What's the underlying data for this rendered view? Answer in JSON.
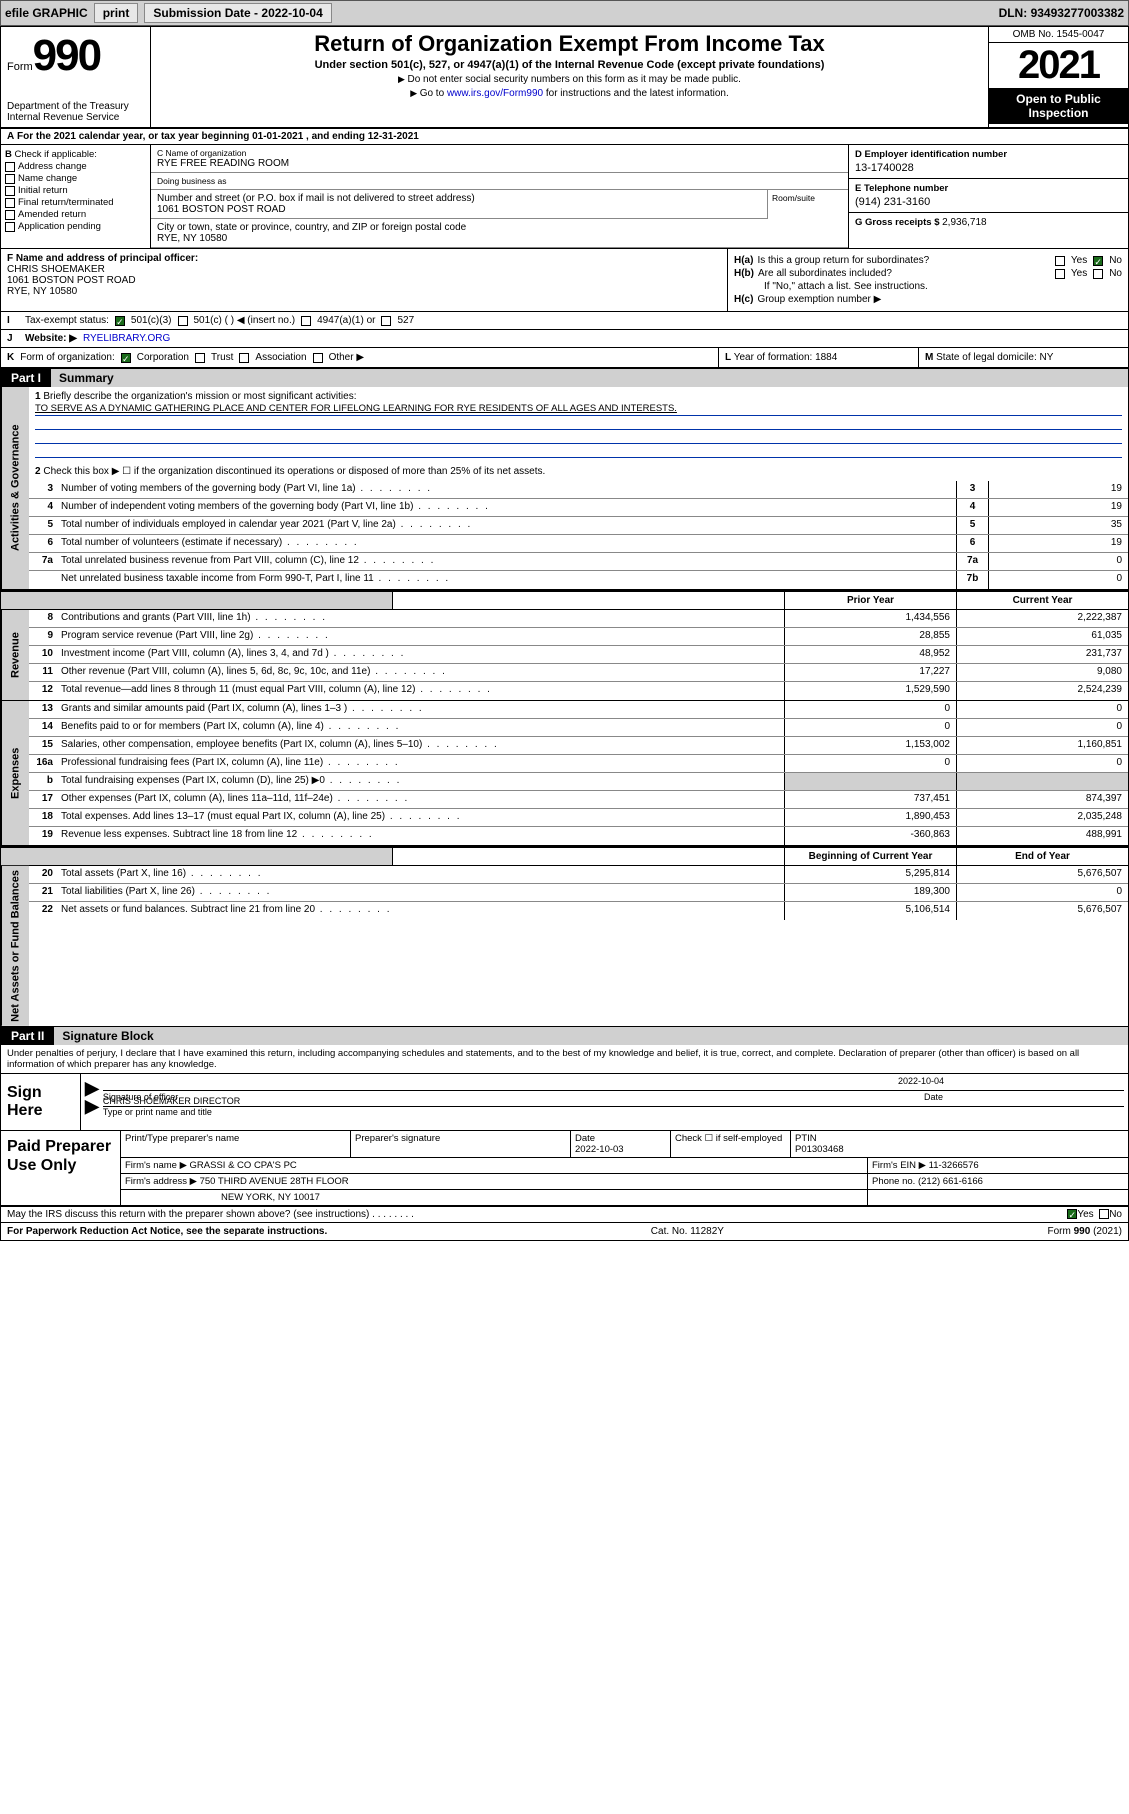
{
  "topbar": {
    "efile": "efile GRAPHIC",
    "print": "print",
    "subdate_label": "Submission Date - ",
    "subdate": "2022-10-04",
    "dln_label": "DLN: ",
    "dln": "93493277003382"
  },
  "header": {
    "form_word": "Form",
    "form_num": "990",
    "dept": "Department of the Treasury",
    "irs": "Internal Revenue Service",
    "title": "Return of Organization Exempt From Income Tax",
    "sub": "Under section 501(c), 527, or 4947(a)(1) of the Internal Revenue Code (except private foundations)",
    "note1": "Do not enter social security numbers on this form as it may be made public.",
    "note2_pre": "Go to ",
    "note2_link": "www.irs.gov/Form990",
    "note2_post": " for instructions and the latest information.",
    "omb": "OMB No. 1545-0047",
    "year": "2021",
    "open": "Open to Public Inspection"
  },
  "rowA": "For the 2021 calendar year, or tax year beginning 01-01-2021  , and ending 12-31-2021",
  "B": {
    "hdr": "Check if applicable:",
    "items": [
      "Address change",
      "Name change",
      "Initial return",
      "Final return/terminated",
      "Amended return",
      "Application pending"
    ]
  },
  "C": {
    "name_lbl": "C Name of organization",
    "name": "RYE FREE READING ROOM",
    "dba_lbl": "Doing business as",
    "dba": "",
    "addr_lbl": "Number and street (or P.O. box if mail is not delivered to street address)",
    "addr": "1061 BOSTON POST ROAD",
    "suite_lbl": "Room/suite",
    "city_lbl": "City or town, state or province, country, and ZIP or foreign postal code",
    "city": "RYE, NY  10580"
  },
  "D": {
    "lbl": "D Employer identification number",
    "val": "13-1740028"
  },
  "E": {
    "lbl": "E Telephone number",
    "val": "(914) 231-3160"
  },
  "G": {
    "lbl": "G Gross receipts $ ",
    "val": "2,936,718"
  },
  "F": {
    "lbl": "F Name and address of principal officer:",
    "name": "CHRIS SHOEMAKER",
    "addr": "1061 BOSTON POST ROAD",
    "city": "RYE, NY  10580"
  },
  "H": {
    "a": "Is this a group return for subordinates?",
    "b": "Are all subordinates included?",
    "b_note": "If \"No,\" attach a list. See instructions.",
    "c": "Group exemption number ▶",
    "yes": "Yes",
    "no": "No"
  },
  "I": {
    "lbl": "Tax-exempt status:",
    "opt1": "501(c)(3)",
    "opt2": "501(c) ( ) ◀ (insert no.)",
    "opt3": "4947(a)(1) or",
    "opt4": "527"
  },
  "J": {
    "lbl": "Website: ▶",
    "val": "RYELIBRARY.ORG"
  },
  "K": {
    "lbl": "Form of organization:",
    "opts": [
      "Corporation",
      "Trust",
      "Association",
      "Other ▶"
    ]
  },
  "L": {
    "lbl": "Year of formation: ",
    "val": "1884"
  },
  "M": {
    "lbl": "State of legal domicile: ",
    "val": "NY"
  },
  "part1": {
    "tag": "Part I",
    "title": "Summary"
  },
  "gov": {
    "side": "Activities & Governance",
    "q1": "Briefly describe the organization's mission or most significant activities:",
    "mission": "TO SERVE AS A DYNAMIC GATHERING PLACE AND CENTER FOR LIFELONG LEARNING FOR RYE RESIDENTS OF ALL AGES AND INTERESTS.",
    "q2": "Check this box ▶ ☐  if the organization discontinued its operations or disposed of more than 25% of its net assets.",
    "rows": [
      {
        "n": "3",
        "t": "Number of voting members of the governing body (Part VI, line 1a)",
        "box": "3",
        "v": "19"
      },
      {
        "n": "4",
        "t": "Number of independent voting members of the governing body (Part VI, line 1b)",
        "box": "4",
        "v": "19"
      },
      {
        "n": "5",
        "t": "Total number of individuals employed in calendar year 2021 (Part V, line 2a)",
        "box": "5",
        "v": "35"
      },
      {
        "n": "6",
        "t": "Total number of volunteers (estimate if necessary)",
        "box": "6",
        "v": "19"
      },
      {
        "n": "7a",
        "t": "Total unrelated business revenue from Part VIII, column (C), line 12",
        "box": "7a",
        "v": "0"
      },
      {
        "n": "",
        "t": "Net unrelated business taxable income from Form 990-T, Part I, line 11",
        "box": "7b",
        "v": "0"
      }
    ]
  },
  "cols": {
    "prior": "Prior Year",
    "current": "Current Year",
    "begin": "Beginning of Current Year",
    "end": "End of Year"
  },
  "rev": {
    "side": "Revenue",
    "rows": [
      {
        "n": "8",
        "t": "Contributions and grants (Part VIII, line 1h)",
        "p": "1,434,556",
        "c": "2,222,387"
      },
      {
        "n": "9",
        "t": "Program service revenue (Part VIII, line 2g)",
        "p": "28,855",
        "c": "61,035"
      },
      {
        "n": "10",
        "t": "Investment income (Part VIII, column (A), lines 3, 4, and 7d )",
        "p": "48,952",
        "c": "231,737"
      },
      {
        "n": "11",
        "t": "Other revenue (Part VIII, column (A), lines 5, 6d, 8c, 9c, 10c, and 11e)",
        "p": "17,227",
        "c": "9,080"
      },
      {
        "n": "12",
        "t": "Total revenue—add lines 8 through 11 (must equal Part VIII, column (A), line 12)",
        "p": "1,529,590",
        "c": "2,524,239"
      }
    ]
  },
  "exp": {
    "side": "Expenses",
    "rows": [
      {
        "n": "13",
        "t": "Grants and similar amounts paid (Part IX, column (A), lines 1–3 )",
        "p": "0",
        "c": "0"
      },
      {
        "n": "14",
        "t": "Benefits paid to or for members (Part IX, column (A), line 4)",
        "p": "0",
        "c": "0"
      },
      {
        "n": "15",
        "t": "Salaries, other compensation, employee benefits (Part IX, column (A), lines 5–10)",
        "p": "1,153,002",
        "c": "1,160,851"
      },
      {
        "n": "16a",
        "t": "Professional fundraising fees (Part IX, column (A), line 11e)",
        "p": "0",
        "c": "0"
      },
      {
        "n": "b",
        "t": "Total fundraising expenses (Part IX, column (D), line 25) ▶0",
        "p": "",
        "c": "",
        "grey": true
      },
      {
        "n": "17",
        "t": "Other expenses (Part IX, column (A), lines 11a–11d, 11f–24e)",
        "p": "737,451",
        "c": "874,397"
      },
      {
        "n": "18",
        "t": "Total expenses. Add lines 13–17 (must equal Part IX, column (A), line 25)",
        "p": "1,890,453",
        "c": "2,035,248"
      },
      {
        "n": "19",
        "t": "Revenue less expenses. Subtract line 18 from line 12",
        "p": "-360,863",
        "c": "488,991"
      }
    ]
  },
  "net": {
    "side": "Net Assets or Fund Balances",
    "rows": [
      {
        "n": "20",
        "t": "Total assets (Part X, line 16)",
        "p": "5,295,814",
        "c": "5,676,507"
      },
      {
        "n": "21",
        "t": "Total liabilities (Part X, line 26)",
        "p": "189,300",
        "c": "0"
      },
      {
        "n": "22",
        "t": "Net assets or fund balances. Subtract line 21 from line 20",
        "p": "5,106,514",
        "c": "5,676,507"
      }
    ]
  },
  "part2": {
    "tag": "Part II",
    "title": "Signature Block"
  },
  "sig": {
    "intro": "Under penalties of perjury, I declare that I have examined this return, including accompanying schedules and statements, and to the best of my knowledge and belief, it is true, correct, and complete. Declaration of preparer (other than officer) is based on all information of which preparer has any knowledge.",
    "sign_here": "Sign Here",
    "sig_officer": "Signature of officer",
    "date": "Date",
    "sig_date": "2022-10-04",
    "name": "CHRIS SHOEMAKER  DIRECTOR",
    "type_name": "Type or print name and title"
  },
  "prep": {
    "label": "Paid Preparer Use Only",
    "r1": {
      "c1": "Print/Type preparer's name",
      "c2": "Preparer's signature",
      "c3_lbl": "Date",
      "c3": "2022-10-03",
      "c4": "Check ☐ if self-employed",
      "c5_lbl": "PTIN",
      "c5": "P01303468"
    },
    "r2": {
      "lbl": "Firm's name    ▶",
      "val": "GRASSI & CO CPA'S PC",
      "ein_lbl": "Firm's EIN ▶",
      "ein": "11-3266576"
    },
    "r3": {
      "lbl": "Firm's address ▶",
      "val": "750 THIRD AVENUE 28TH FLOOR",
      "phone_lbl": "Phone no.",
      "phone": "(212) 661-6166"
    },
    "r4": {
      "val": "NEW YORK, NY  10017"
    }
  },
  "may": {
    "q": "May the IRS discuss this return with the preparer shown above? (see instructions)",
    "yes": "Yes",
    "no": "No"
  },
  "footer": {
    "left": "For Paperwork Reduction Act Notice, see the separate instructions.",
    "mid": "Cat. No. 11282Y",
    "right": "Form 990 (2021)"
  }
}
